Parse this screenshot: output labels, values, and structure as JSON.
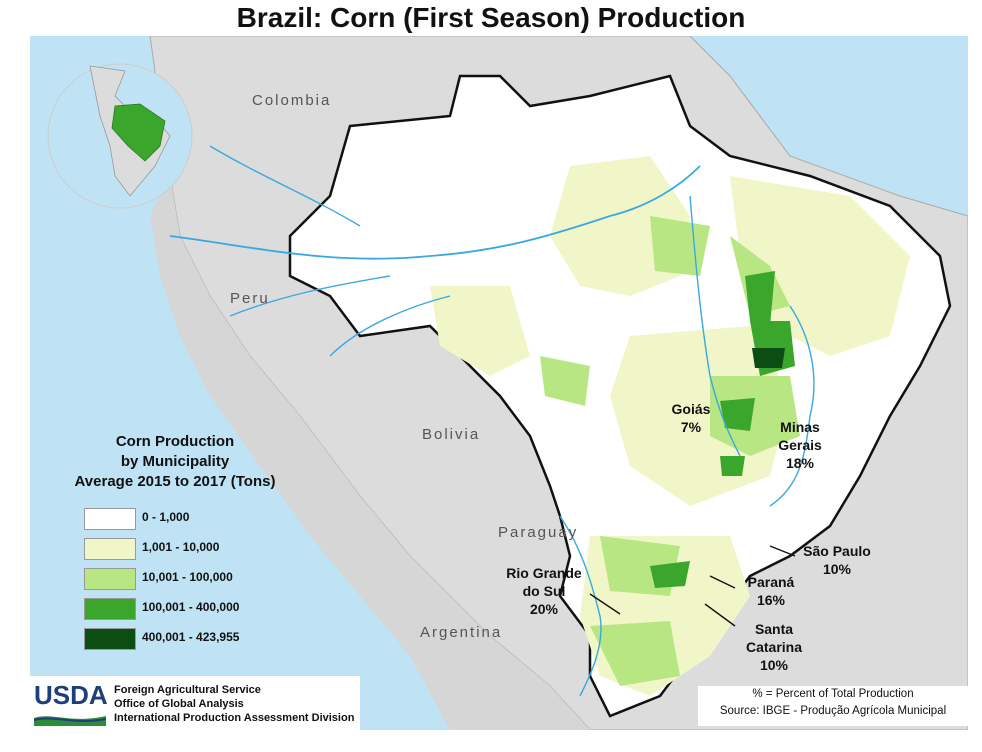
{
  "title": "Brazil: Corn (First Season) Production",
  "countries": {
    "colombia": "Colombia",
    "peru": "Peru",
    "bolivia": "Bolivia",
    "paraguay": "Paraguay",
    "argentina": "Argentina"
  },
  "states": [
    {
      "name": "Goiás",
      "share": "7%"
    },
    {
      "name_line1": "Minas",
      "name_line2": "Gerais",
      "share": "18%"
    },
    {
      "name": "São Paulo",
      "share": "10%"
    },
    {
      "name": "Paraná",
      "share": "16%"
    },
    {
      "name_line1": "Santa",
      "name_line2": "Catarina",
      "share": "10%"
    },
    {
      "name_line1": "Rio Grande",
      "name_line2": "do Sul",
      "share": "20%"
    }
  ],
  "legend": {
    "title_line1": "Corn Production",
    "title_line2": "by Municipality",
    "title_line3": "Average 2015 to 2017 (Tons)",
    "items": [
      {
        "label": "0 - 1,000",
        "color": "#ffffff"
      },
      {
        "label": "1,001 - 10,000",
        "color": "#f1f6c8"
      },
      {
        "label": "10,001 - 100,000",
        "color": "#b8e682"
      },
      {
        "label": "100,001 - 400,000",
        "color": "#3aa62b"
      },
      {
        "label": "400,001 - 423,955",
        "color": "#0b4d12"
      }
    ]
  },
  "agency": {
    "logo": "USDA",
    "line1": "Foreign Agricultural Service",
    "line2": "Office of Global Analysis",
    "line3": "International Production Assessment Division"
  },
  "notes": {
    "line1": "% = Percent of Total Production",
    "line2": "Source: IBGE - Produção Agrícola Municipal"
  },
  "colors": {
    "ocean": "#bfe3f5",
    "land": "#dcdcdc",
    "river": "#39a8e0",
    "accent": "#1d3f7a"
  }
}
